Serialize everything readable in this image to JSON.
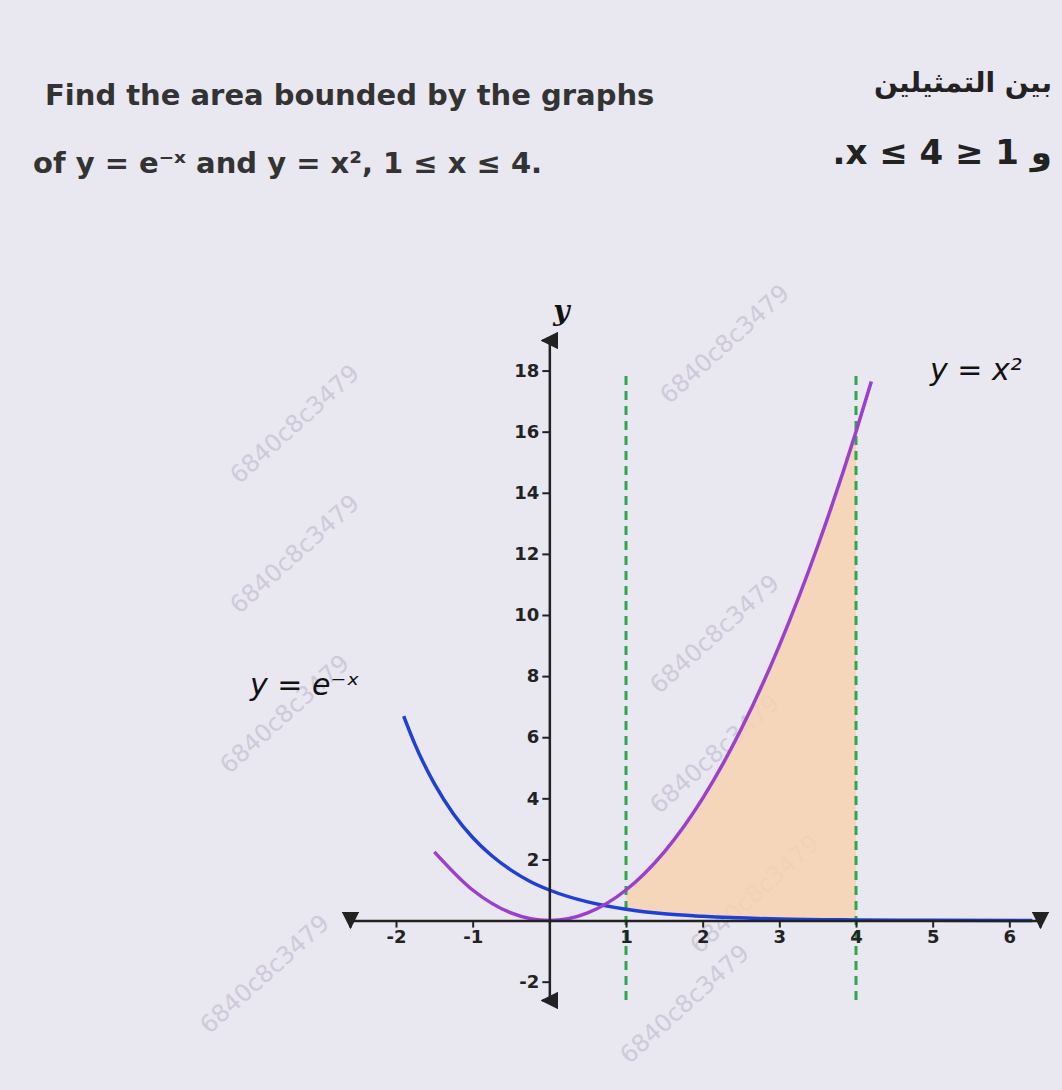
{
  "chart_data": {
    "type": "line",
    "title": [
      "Find the area bounded by the graphs",
      "of y = e⁻ˣ and y = x², 1 ≤ x ≤ 4."
    ],
    "subtitle": [
      "بين التمثيلين",
      "و 1 ≤ x ≤ 4."
    ],
    "y_label": "y",
    "watermark": "6840c8c3479",
    "xlim": [
      -2.6,
      6.4
    ],
    "ylim": [
      -2.6,
      19
    ],
    "xticks": [
      -2,
      -1,
      1,
      2,
      3,
      4,
      5,
      6
    ],
    "yticks": [
      -2,
      2,
      4,
      6,
      8,
      10,
      12,
      14,
      16,
      18
    ],
    "grid": false,
    "series": [
      {
        "name": "y = e⁻ˣ",
        "color": "#1f3fd6",
        "x": [
          -1.9,
          -1.75,
          -1.5,
          -1.25,
          -1,
          -0.75,
          -0.5,
          -0.25,
          0,
          0.5,
          1,
          1.5,
          2,
          3,
          4,
          5,
          6.3
        ],
        "values": [
          6.69,
          5.75,
          4.48,
          3.49,
          2.72,
          2.12,
          1.65,
          1.28,
          1,
          0.61,
          0.37,
          0.22,
          0.14,
          0.05,
          0.02,
          0.01,
          0.0
        ]
      },
      {
        "name": "y = x²",
        "color": "#9b3fd0",
        "x": [
          -1.5,
          -1,
          -0.5,
          0,
          0.5,
          1,
          1.5,
          2,
          2.5,
          3,
          3.5,
          4,
          4.2
        ],
        "values": [
          2.25,
          1,
          0.25,
          0,
          0.25,
          1,
          2.25,
          4,
          6.25,
          9,
          12.25,
          16,
          17.64
        ]
      }
    ],
    "fill_between": {
      "color": "#f7d2b0",
      "x": [
        1,
        1.5,
        2,
        2.5,
        3,
        3.5,
        4
      ],
      "upper": [
        1,
        2.25,
        4,
        6.25,
        9,
        12.25,
        16
      ],
      "lower": [
        0.37,
        0.22,
        0.14,
        0.08,
        0.05,
        0.03,
        0.02
      ]
    },
    "vlines": {
      "x": [
        1,
        4
      ],
      "color": "#2ea84a",
      "line_style": "dashed"
    }
  }
}
